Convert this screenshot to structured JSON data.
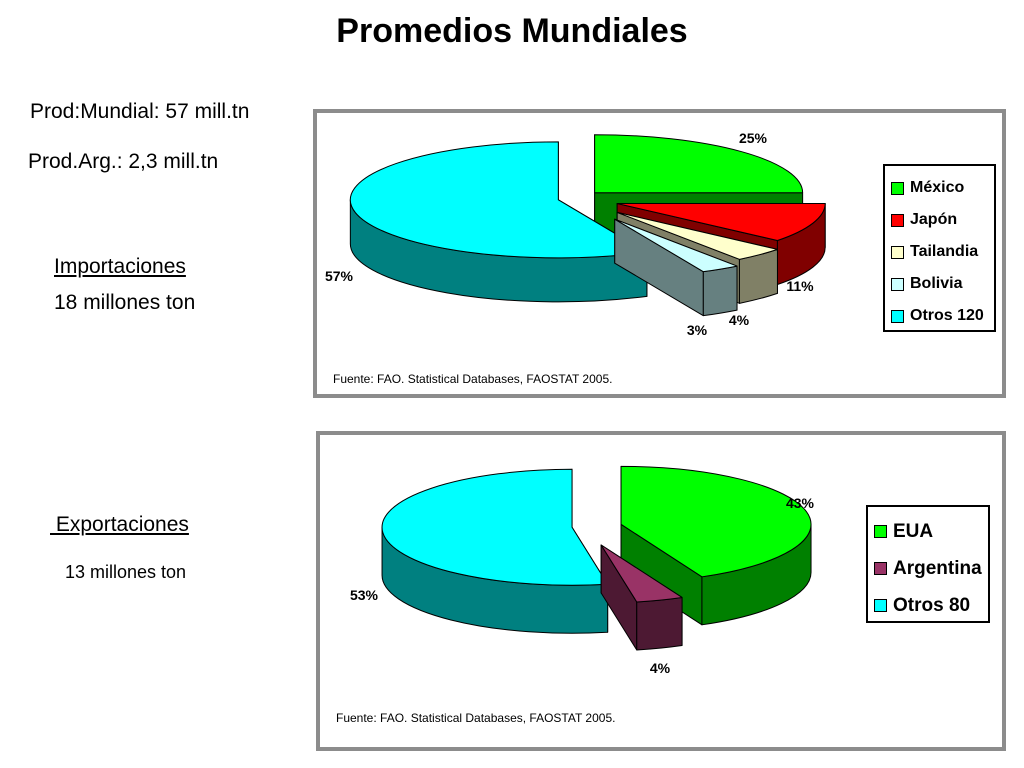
{
  "page": {
    "title": "Promedios Mundiales",
    "prod_mundial": "Prod:Mundial: 57 mill.tn",
    "prod_arg": "Prod.Arg.: 2,3 mill.tn",
    "import_label": "Importaciones",
    "import_value": "18 millones ton",
    "export_label": " Exportaciones",
    "export_value": "13 millones ton"
  },
  "chart_data": [
    {
      "type": "pie",
      "style": "3d-exploded",
      "legend_position": "right",
      "source": "Fuente: FAO. Statistical Databases, FAOSTAT 2005.",
      "slices": [
        {
          "label": "México",
          "value": 25,
          "data_label": "25%",
          "color": "#00ff00",
          "dark": "#008000"
        },
        {
          "label": "Japón",
          "value": 11,
          "data_label": "11%",
          "color": "#ff0000",
          "dark": "#800000"
        },
        {
          "label": "Tailandia",
          "value": 4,
          "data_label": "4%",
          "color": "#ffffcc",
          "dark": "#808066"
        },
        {
          "label": "Bolivia",
          "value": 3,
          "data_label": "3%",
          "color": "#ccffff",
          "dark": "#668080"
        },
        {
          "label": "Otros 120",
          "value": 57,
          "data_label": "57%",
          "color": "#00ffff",
          "dark": "#008080"
        }
      ]
    },
    {
      "type": "pie",
      "style": "3d-exploded",
      "legend_position": "right",
      "source": "Fuente: FAO. Statistical Databases, FAOSTAT 2005.",
      "slices": [
        {
          "label": "EUA",
          "value": 43,
          "data_label": "43%",
          "color": "#00ff00",
          "dark": "#008000"
        },
        {
          "label": "Argentina",
          "value": 4,
          "data_label": "4%",
          "color": "#993366",
          "dark": "#4d1933"
        },
        {
          "label": "Otros 80",
          "value": 53,
          "data_label": "53%",
          "color": "#00ffff",
          "dark": "#008080"
        }
      ]
    }
  ]
}
